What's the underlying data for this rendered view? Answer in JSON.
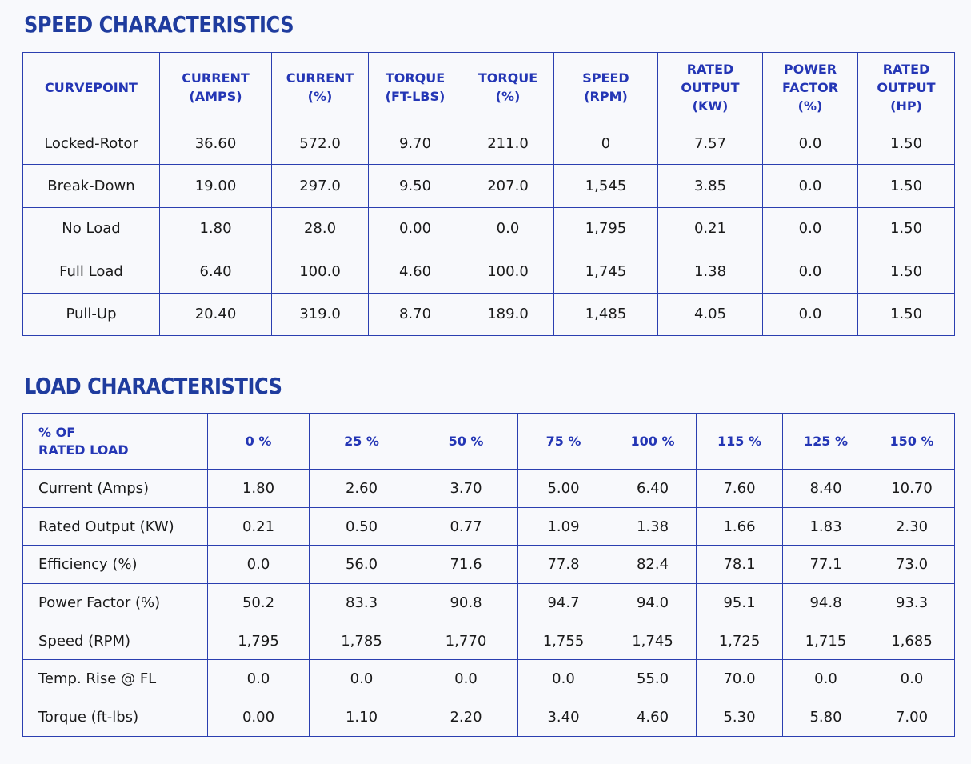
{
  "speed_characteristics": {
    "title": "SPEED CHARACTERISTICS",
    "headers": [
      [
        "CURVEPOINT"
      ],
      [
        "CURRENT",
        "(AMPS)"
      ],
      [
        "CURRENT",
        "(%)"
      ],
      [
        "TORQUE",
        "(FT-LBS)"
      ],
      [
        "TORQUE",
        "(%)"
      ],
      [
        "SPEED",
        "(RPM)"
      ],
      [
        "RATED",
        "OUTPUT",
        "(KW)"
      ],
      [
        "POWER",
        "FACTOR",
        "(%)"
      ],
      [
        "RATED",
        "OUTPUT",
        "(HP)"
      ]
    ],
    "rows": [
      [
        "Locked-Rotor",
        "36.60",
        "572.0",
        "9.70",
        "211.0",
        "0",
        "7.57",
        "0.0",
        "1.50"
      ],
      [
        "Break-Down",
        "19.00",
        "297.0",
        "9.50",
        "207.0",
        "1,545",
        "3.85",
        "0.0",
        "1.50"
      ],
      [
        "No Load",
        "1.80",
        "28.0",
        "0.00",
        "0.0",
        "1,795",
        "0.21",
        "0.0",
        "1.50"
      ],
      [
        "Full Load",
        "6.40",
        "100.0",
        "4.60",
        "100.0",
        "1,745",
        "1.38",
        "0.0",
        "1.50"
      ],
      [
        "Pull-Up",
        "20.40",
        "319.0",
        "8.70",
        "189.0",
        "1,485",
        "4.05",
        "0.0",
        "1.50"
      ]
    ]
  },
  "load_characteristics": {
    "title": "LOAD CHARACTERISTICS",
    "corner_label": [
      "% OF",
      "RATED LOAD"
    ],
    "headers": [
      "0 %",
      "25 %",
      "50 %",
      "75 %",
      "100 %",
      "115 %",
      "125 %",
      "150 %"
    ],
    "rows": [
      [
        "Current (Amps)",
        "1.80",
        "2.60",
        "3.70",
        "5.00",
        "6.40",
        "7.60",
        "8.40",
        "10.70"
      ],
      [
        "Rated Output (KW)",
        "0.21",
        "0.50",
        "0.77",
        "1.09",
        "1.38",
        "1.66",
        "1.83",
        "2.30"
      ],
      [
        "Efficiency (%)",
        "0.0",
        "56.0",
        "71.6",
        "77.8",
        "82.4",
        "78.1",
        "77.1",
        "73.0"
      ],
      [
        "Power Factor (%)",
        "50.2",
        "83.3",
        "90.8",
        "94.7",
        "94.0",
        "95.1",
        "94.8",
        "93.3"
      ],
      [
        "Speed (RPM)",
        "1,795",
        "1,785",
        "1,770",
        "1,755",
        "1,745",
        "1,725",
        "1,715",
        "1,685"
      ],
      [
        "Temp. Rise @ FL",
        "0.0",
        "0.0",
        "0.0",
        "0.0",
        "55.0",
        "70.0",
        "0.0",
        "0.0"
      ],
      [
        "Torque (ft-lbs)",
        "0.00",
        "1.10",
        "2.20",
        "3.40",
        "4.60",
        "5.30",
        "5.80",
        "7.00"
      ]
    ]
  }
}
